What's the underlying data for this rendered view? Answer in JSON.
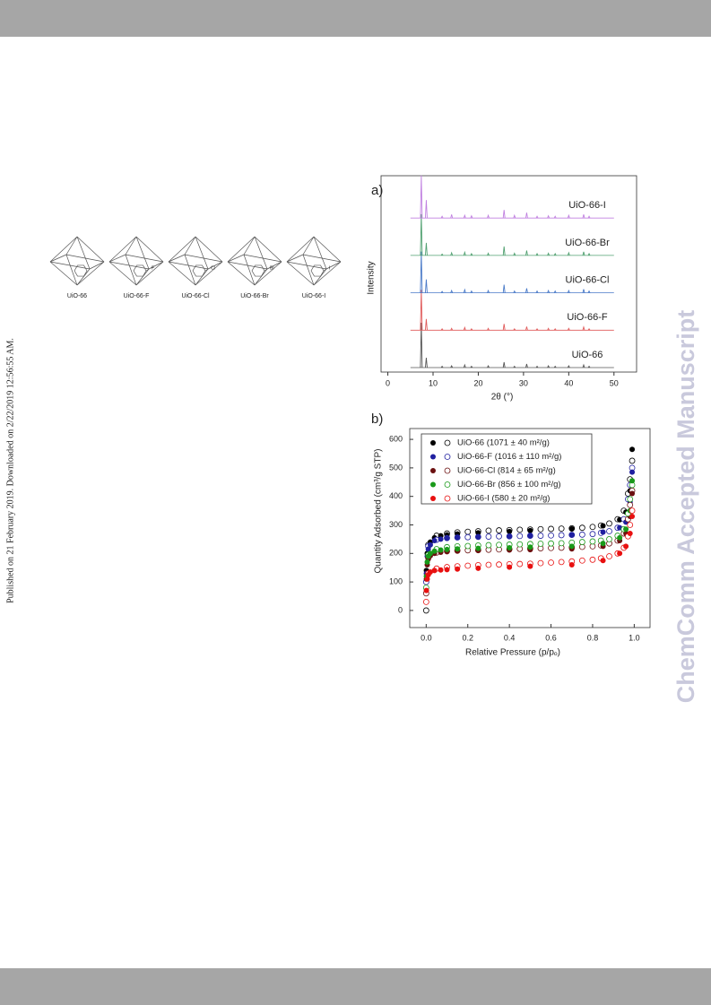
{
  "sidebar_note": "Published on 21 February 2019. Downloaded on 2/22/2019 12:56:55 AM.",
  "watermark": "ChemComm Accepted Manuscript",
  "structures": [
    {
      "label": "UiO-66"
    },
    {
      "label": "UiO-66-F",
      "substituent": "F"
    },
    {
      "label": "UiO-66-Cl",
      "substituent": "Cl"
    },
    {
      "label": "UiO-66-Br",
      "substituent": "Br"
    },
    {
      "label": "UiO-66-I",
      "substituent": "I"
    }
  ],
  "chart_data": [
    {
      "type": "xrd",
      "panel_label": "a)",
      "y_label": "Intensity",
      "x_label": "2θ (°)",
      "xlim": [
        -1.5,
        55
      ],
      "xticks": [
        0,
        10,
        20,
        30,
        40,
        50
      ],
      "x": [
        7.4,
        8.5,
        12.0,
        14.1,
        17.0,
        18.5,
        22.2,
        25.7,
        28.0,
        30.7,
        33.0,
        35.5,
        37.0,
        40.0,
        43.3,
        44.5
      ],
      "series": [
        {
          "name": "UiO-66",
          "color": "#555555",
          "values": [
            100,
            22,
            3,
            4,
            6,
            3,
            4,
            12,
            3,
            8,
            3,
            4,
            3,
            4,
            6,
            3
          ]
        },
        {
          "name": "UiO-66-F",
          "color": "#e05a5a",
          "values": [
            90,
            25,
            3,
            4,
            6,
            3,
            4,
            14,
            3,
            8,
            3,
            4,
            3,
            4,
            7,
            3
          ]
        },
        {
          "name": "UiO-66-Cl",
          "color": "#4a7ac8",
          "values": [
            92,
            30,
            3,
            5,
            7,
            4,
            5,
            18,
            4,
            10,
            4,
            5,
            4,
            5,
            8,
            4
          ]
        },
        {
          "name": "UiO-66-Br",
          "color": "#50a070",
          "values": [
            92,
            28,
            3,
            6,
            7,
            4,
            5,
            20,
            5,
            11,
            4,
            5,
            4,
            6,
            8,
            4
          ]
        },
        {
          "name": "UiO-66-I",
          "color": "#c080e0",
          "values": [
            95,
            40,
            4,
            8,
            6,
            5,
            6,
            18,
            6,
            12,
            4,
            5,
            4,
            6,
            8,
            4
          ]
        }
      ]
    },
    {
      "type": "isotherm",
      "panel_label": "b)",
      "y_label": "Quantity Adsorbed (cm³/g STP)",
      "x_label": "Relative Pressure (p/pₒ)",
      "xlim": [
        -0.079,
        1.076
      ],
      "ylim": [
        -60,
        638
      ],
      "xticks": [
        {
          "value": 0,
          "label": "0.0"
        },
        0.2,
        0.4,
        0.6,
        0.8,
        {
          "value": 1,
          "label": "1.0"
        }
      ],
      "yticks": [
        0,
        100,
        200,
        300,
        400,
        500,
        600
      ],
      "x": [
        0.001,
        0.005,
        0.01,
        0.02,
        0.04,
        0.07,
        0.1,
        0.15,
        0.25,
        0.4,
        0.5,
        0.7,
        0.85,
        0.93,
        0.96,
        0.98,
        0.99
      ],
      "x_desorption": [
        0.99,
        0.98,
        0.97,
        0.95,
        0.92,
        0.88,
        0.84,
        0.8,
        0.75,
        0.7,
        0.65,
        0.6,
        0.55,
        0.5,
        0.45,
        0.4,
        0.35,
        0.3,
        0.25,
        0.2,
        0.15,
        0.1,
        0.05,
        0.01,
        0.0
      ],
      "series": [
        {
          "name": "UiO-66 (1071 ± 40 m²/g)",
          "color": "#000000",
          "values": [
            140,
            200,
            225,
            240,
            255,
            262,
            265,
            268,
            272,
            277,
            280,
            286,
            297,
            318,
            345,
            420,
            565
          ],
          "values_desorption": [
            525,
            460,
            410,
            350,
            320,
            305,
            298,
            293,
            290,
            288,
            287,
            286,
            285,
            284,
            283,
            282,
            281,
            280,
            278,
            276,
            274,
            270,
            262,
            230,
            0
          ]
        },
        {
          "name": "UiO-66-F (1016 ± 110 m²/g)",
          "color": "#2020a0",
          "values": [
            130,
            190,
            215,
            230,
            245,
            250,
            253,
            256,
            258,
            260,
            262,
            265,
            275,
            290,
            310,
            380,
            485
          ],
          "values_desorption": [
            500,
            440,
            390,
            320,
            290,
            278,
            272,
            268,
            266,
            265,
            264,
            263,
            262,
            262,
            261,
            260,
            260,
            259,
            258,
            257,
            256,
            254,
            248,
            225,
            100
          ]
        },
        {
          "name": "UiO-66-Cl (814 ± 65 m²/g)",
          "color": "#6b1010",
          "values": [
            110,
            160,
            180,
            192,
            200,
            204,
            206,
            208,
            210,
            212,
            213,
            216,
            225,
            245,
            270,
            330,
            410
          ],
          "values_desorption": [
            420,
            370,
            320,
            270,
            245,
            235,
            228,
            225,
            223,
            221,
            220,
            219,
            218,
            217,
            216,
            215,
            214,
            213,
            212,
            211,
            210,
            208,
            203,
            185,
            60
          ]
        },
        {
          "name": "UiO-66-Br (856 ± 100 m²/g)",
          "color": "#1a9a1a",
          "values": [
            120,
            170,
            190,
            200,
            208,
            212,
            214,
            216,
            218,
            220,
            222,
            225,
            235,
            255,
            285,
            350,
            455
          ],
          "values_desorption": [
            440,
            390,
            340,
            285,
            262,
            250,
            245,
            242,
            240,
            238,
            236,
            235,
            234,
            233,
            232,
            231,
            230,
            229,
            228,
            226,
            225,
            222,
            215,
            195,
            80
          ]
        },
        {
          "name": "UiO-66-I (580 ± 20 m²/g)",
          "color": "#e81010",
          "values": [
            70,
            110,
            125,
            135,
            140,
            142,
            143,
            145,
            148,
            152,
            155,
            160,
            175,
            200,
            225,
            270,
            330
          ],
          "values_desorption": [
            350,
            300,
            260,
            220,
            200,
            190,
            183,
            178,
            175,
            172,
            170,
            168,
            166,
            164,
            163,
            162,
            161,
            160,
            159,
            157,
            155,
            152,
            147,
            130,
            30
          ]
        }
      ]
    }
  ]
}
